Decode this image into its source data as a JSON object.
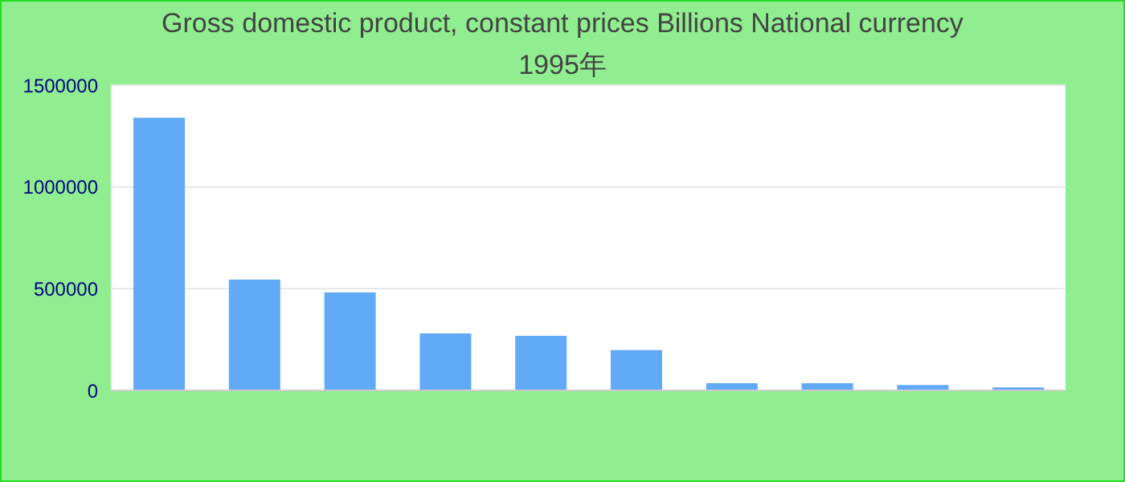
{
  "chart_data": {
    "type": "bar",
    "title": "Gross domestic product, constant prices Billions National currency",
    "subtitle": "1995年",
    "categories": [
      null,
      null,
      null,
      null,
      null,
      null,
      null,
      null,
      null,
      null
    ],
    "values": [
      1340000,
      545000,
      482000,
      280000,
      268000,
      198000,
      36000,
      36000,
      27000,
      15000
    ],
    "color": "#62aaf5",
    "ylim": [
      0,
      1500000
    ],
    "yticks": [
      0,
      500000,
      1000000,
      1500000
    ],
    "grid": "y"
  }
}
